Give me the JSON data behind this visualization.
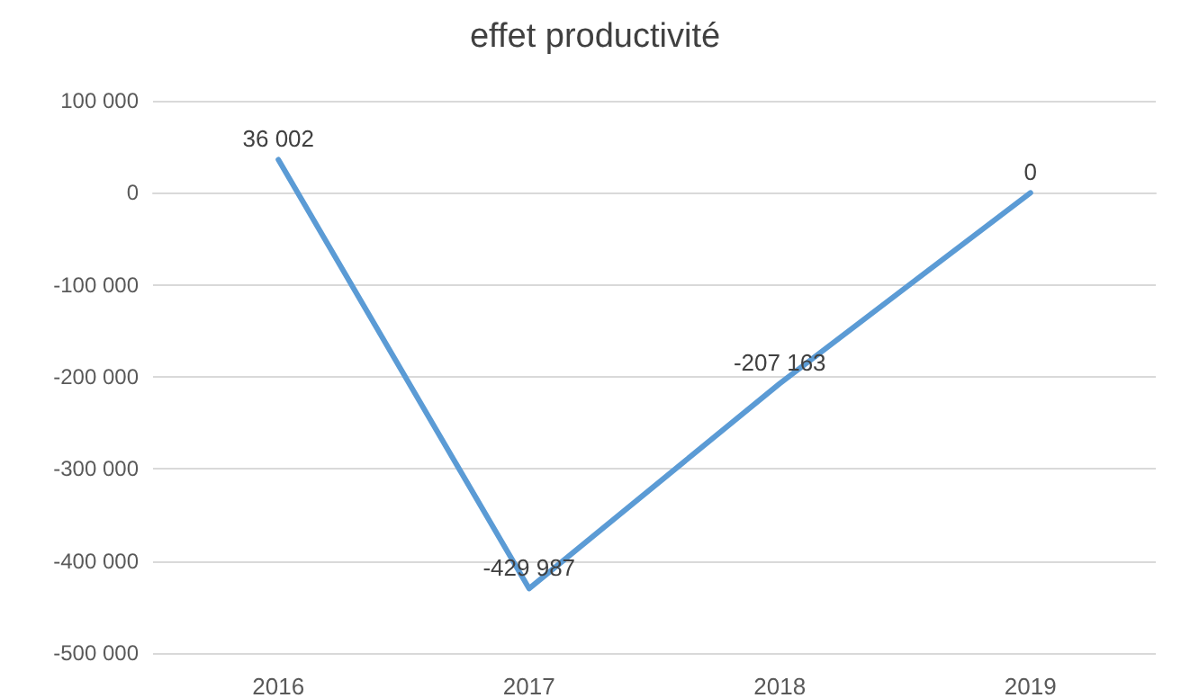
{
  "chart_data": {
    "type": "line",
    "title": "effet productivité",
    "categories": [
      "2016",
      "2017",
      "2018",
      "2019"
    ],
    "series": [
      {
        "color": "#5b9bd5",
        "values": [
          36002,
          -429987,
          -207163,
          0
        ],
        "value_labels": [
          "36 002",
          "-429 987",
          "-207 163",
          "0"
        ]
      }
    ],
    "ylim": [
      -500000,
      100000
    ],
    "yticks": [
      {
        "value": -500000,
        "label": "-500 000"
      },
      {
        "value": -400000,
        "label": "-400 000"
      },
      {
        "value": -300000,
        "label": "-300 000"
      },
      {
        "value": -200000,
        "label": "-200 000"
      },
      {
        "value": -100000,
        "label": "-100 000"
      },
      0,
      {
        "value": 100000,
        "label": "100 000"
      }
    ],
    "grid": "y",
    "marker": "none",
    "line_style": "solid"
  }
}
